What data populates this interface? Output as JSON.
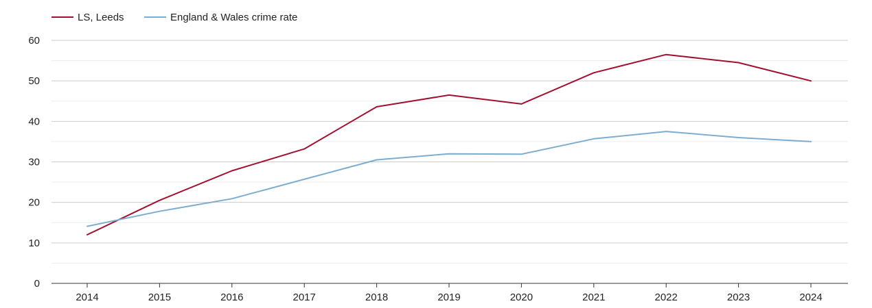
{
  "chart_data": {
    "type": "line",
    "title": "",
    "xlabel": "",
    "ylabel": "",
    "categories": [
      "2014",
      "2015",
      "2016",
      "2017",
      "2018",
      "2019",
      "2020",
      "2021",
      "2022",
      "2023",
      "2024"
    ],
    "yticks": [
      "0",
      "10",
      "20",
      "30",
      "40",
      "50",
      "60"
    ],
    "ylim": [
      0,
      60
    ],
    "grid": true,
    "legend_position": "top-left",
    "series": [
      {
        "name": "LS, Leeds",
        "color": "#a0102f",
        "values": [
          12.0,
          20.5,
          27.8,
          33.2,
          43.6,
          46.5,
          44.3,
          52.0,
          56.5,
          54.5,
          50.0
        ]
      },
      {
        "name": "England & Wales crime rate",
        "color": "#7aadcf",
        "values": [
          14.1,
          17.8,
          20.9,
          25.7,
          30.5,
          32.0,
          31.9,
          35.7,
          37.5,
          36.0,
          35.0
        ]
      }
    ]
  }
}
